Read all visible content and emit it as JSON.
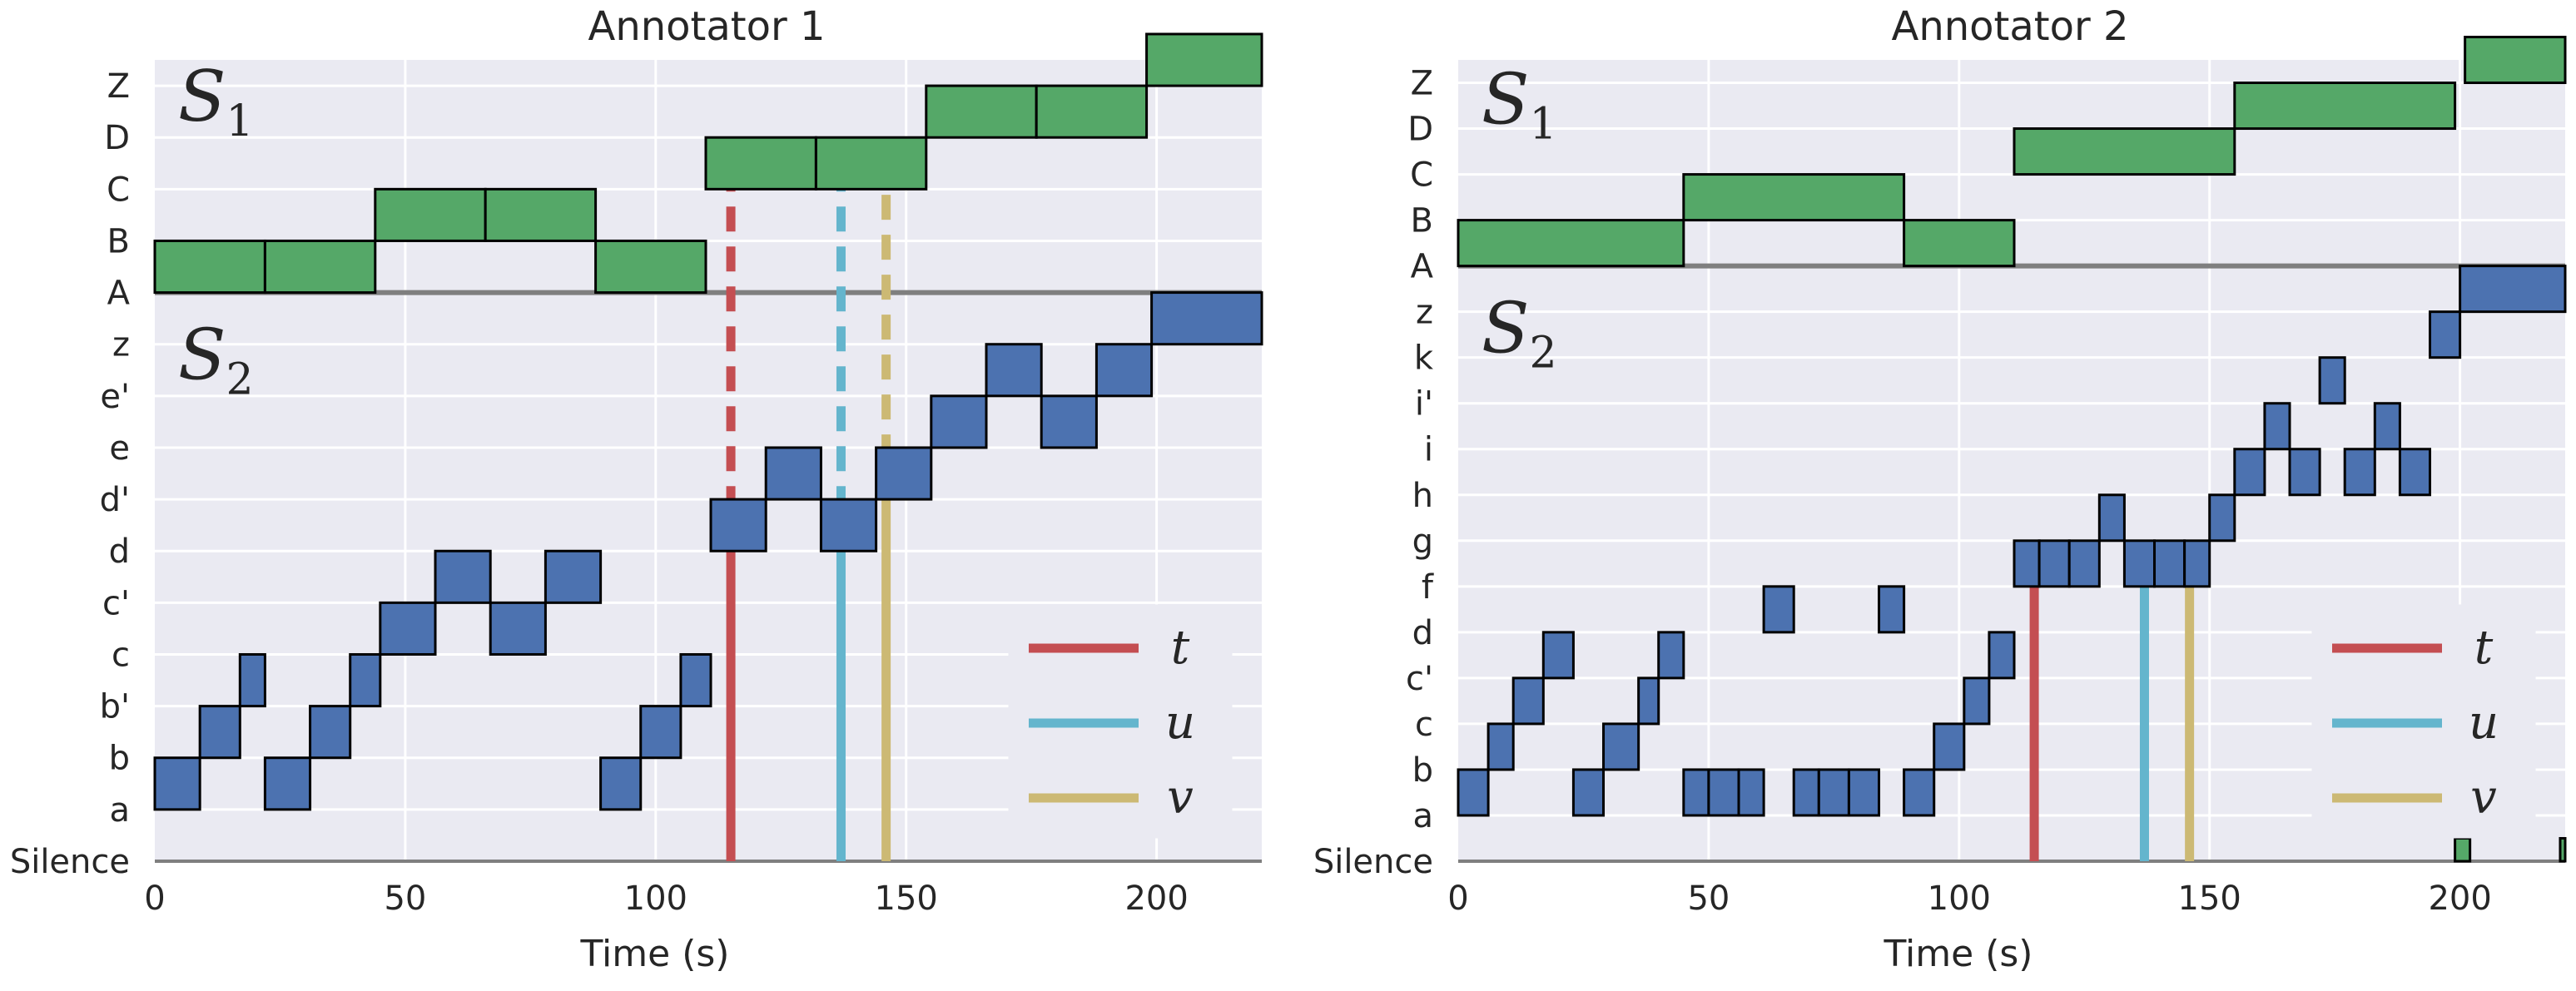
{
  "chart_data": [
    {
      "type": "step-timeline",
      "title": "Annotator 1",
      "xlabel": "Time (s)",
      "xlim": [
        0,
        221
      ],
      "xticks": [
        0,
        50,
        100,
        150,
        200
      ],
      "colors": {
        "segment_upper": "#55a868",
        "segment_lower": "#4c72b0",
        "t": "#c44e52",
        "u": "#64b5cd",
        "v": "#ccb974"
      },
      "y_levels": [
        "Silence",
        "a",
        "b",
        "b'",
        "c",
        "c'",
        "d",
        "d'",
        "e",
        "e'",
        "z",
        "A",
        "B",
        "C",
        "D",
        "Z"
      ],
      "sections": [
        {
          "name": "S",
          "sub": "1",
          "levels": [
            "A",
            "B",
            "C",
            "D",
            "Z"
          ]
        },
        {
          "name": "S",
          "sub": "2",
          "levels": [
            "a",
            "b",
            "b'",
            "c",
            "c'",
            "d",
            "d'",
            "e",
            "e'",
            "z"
          ]
        }
      ],
      "upper_segments": [
        {
          "start": 0,
          "end": 22,
          "label": "A"
        },
        {
          "start": 22,
          "end": 44,
          "label": "A"
        },
        {
          "start": 44,
          "end": 66,
          "label": "B"
        },
        {
          "start": 66,
          "end": 88,
          "label": "B"
        },
        {
          "start": 88,
          "end": 110,
          "label": "A"
        },
        {
          "start": 110,
          "end": 132,
          "label": "C"
        },
        {
          "start": 132,
          "end": 154,
          "label": "C"
        },
        {
          "start": 154,
          "end": 176,
          "label": "D"
        },
        {
          "start": 176,
          "end": 198,
          "label": "D"
        },
        {
          "start": 198,
          "end": 221,
          "label": "Z"
        }
      ],
      "lower_segments": [
        {
          "start": 0,
          "end": 9,
          "label": "a"
        },
        {
          "start": 9,
          "end": 17,
          "label": "b"
        },
        {
          "start": 17,
          "end": 22,
          "label": "b'"
        },
        {
          "start": 22,
          "end": 31,
          "label": "a"
        },
        {
          "start": 31,
          "end": 39,
          "label": "b"
        },
        {
          "start": 39,
          "end": 45,
          "label": "b'"
        },
        {
          "start": 45,
          "end": 56,
          "label": "c"
        },
        {
          "start": 56,
          "end": 67,
          "label": "c'"
        },
        {
          "start": 67,
          "end": 78,
          "label": "c"
        },
        {
          "start": 78,
          "end": 89,
          "label": "c'"
        },
        {
          "start": 89,
          "end": 97,
          "label": "a"
        },
        {
          "start": 97,
          "end": 105,
          "label": "b"
        },
        {
          "start": 105,
          "end": 111,
          "label": "b'"
        },
        {
          "start": 111,
          "end": 122,
          "label": "d"
        },
        {
          "start": 122,
          "end": 133,
          "label": "d'"
        },
        {
          "start": 133,
          "end": 144,
          "label": "d"
        },
        {
          "start": 144,
          "end": 155,
          "label": "d'"
        },
        {
          "start": 155,
          "end": 166,
          "label": "e"
        },
        {
          "start": 166,
          "end": 177,
          "label": "e'"
        },
        {
          "start": 177,
          "end": 188,
          "label": "e"
        },
        {
          "start": 188,
          "end": 199,
          "label": "e'"
        },
        {
          "start": 199,
          "end": 221,
          "label": "z"
        }
      ],
      "markers": [
        {
          "name": "t",
          "x": 115,
          "solid_top": "d"
        },
        {
          "name": "u",
          "x": 137,
          "solid_top": "d"
        },
        {
          "name": "v",
          "x": 146,
          "solid_top": "d'"
        }
      ],
      "marker_dash_top": "C",
      "legend": [
        "t",
        "u",
        "v"
      ],
      "legend_position": "lower-right"
    },
    {
      "type": "step-timeline",
      "title": "Annotator 2",
      "xlabel": "Time (s)",
      "xlim": [
        0,
        221
      ],
      "xticks": [
        0,
        50,
        100,
        150,
        200
      ],
      "colors": {
        "segment_upper": "#55a868",
        "segment_lower": "#4c72b0",
        "t": "#c44e52",
        "u": "#64b5cd",
        "v": "#ccb974"
      },
      "y_levels": [
        "Silence",
        "a",
        "b",
        "c",
        "c'",
        "d",
        "f",
        "g",
        "h",
        "i",
        "i'",
        "k",
        "z",
        "A",
        "B",
        "C",
        "D",
        "Z"
      ],
      "sections": [
        {
          "name": "S",
          "sub": "1",
          "levels": [
            "A",
            "B",
            "C",
            "D",
            "Z"
          ]
        },
        {
          "name": "S",
          "sub": "2",
          "levels": [
            "a",
            "b",
            "c",
            "c'",
            "d",
            "f",
            "g",
            "h",
            "i",
            "i'",
            "k",
            "z"
          ]
        }
      ],
      "upper_segments": [
        {
          "start": 0,
          "end": 45,
          "label": "A"
        },
        {
          "start": 45,
          "end": 89,
          "label": "B"
        },
        {
          "start": 89,
          "end": 111,
          "label": "A"
        },
        {
          "start": 111,
          "end": 155,
          "label": "C"
        },
        {
          "start": 155,
          "end": 199,
          "label": "D"
        },
        {
          "start": 201,
          "end": 221,
          "label": "Z"
        }
      ],
      "lower_segments": [
        {
          "start": 0,
          "end": 6,
          "label": "a"
        },
        {
          "start": 6,
          "end": 11,
          "label": "b"
        },
        {
          "start": 11,
          "end": 17,
          "label": "c"
        },
        {
          "start": 17,
          "end": 23,
          "label": "c'"
        },
        {
          "start": 23,
          "end": 29,
          "label": "a"
        },
        {
          "start": 29,
          "end": 36,
          "label": "b"
        },
        {
          "start": 36,
          "end": 40,
          "label": "c"
        },
        {
          "start": 40,
          "end": 45,
          "label": "c'"
        },
        {
          "start": 45,
          "end": 50,
          "label": "a"
        },
        {
          "start": 50,
          "end": 56,
          "label": "a"
        },
        {
          "start": 56,
          "end": 61,
          "label": "a"
        },
        {
          "start": 61,
          "end": 67,
          "label": "d"
        },
        {
          "start": 67,
          "end": 72,
          "label": "a"
        },
        {
          "start": 72,
          "end": 78,
          "label": "a"
        },
        {
          "start": 78,
          "end": 84,
          "label": "a"
        },
        {
          "start": 84,
          "end": 89,
          "label": "d"
        },
        {
          "start": 89,
          "end": 95,
          "label": "a"
        },
        {
          "start": 95,
          "end": 101,
          "label": "b"
        },
        {
          "start": 101,
          "end": 106,
          "label": "c"
        },
        {
          "start": 106,
          "end": 111,
          "label": "c'"
        },
        {
          "start": 111,
          "end": 116,
          "label": "f"
        },
        {
          "start": 116,
          "end": 122,
          "label": "f"
        },
        {
          "start": 122,
          "end": 128,
          "label": "f"
        },
        {
          "start": 128,
          "end": 133,
          "label": "g"
        },
        {
          "start": 133,
          "end": 139,
          "label": "f"
        },
        {
          "start": 139,
          "end": 145,
          "label": "f"
        },
        {
          "start": 145,
          "end": 150,
          "label": "f"
        },
        {
          "start": 150,
          "end": 155,
          "label": "g"
        },
        {
          "start": 155,
          "end": 161,
          "label": "h"
        },
        {
          "start": 161,
          "end": 166,
          "label": "i"
        },
        {
          "start": 166,
          "end": 172,
          "label": "h"
        },
        {
          "start": 172,
          "end": 177,
          "label": "i'"
        },
        {
          "start": 177,
          "end": 183,
          "label": "h"
        },
        {
          "start": 183,
          "end": 188,
          "label": "i"
        },
        {
          "start": 188,
          "end": 194,
          "label": "h"
        },
        {
          "start": 194,
          "end": 200,
          "label": "k"
        },
        {
          "start": 200,
          "end": 221,
          "label": "z"
        }
      ],
      "silence_ticks": [
        {
          "start": 199,
          "end": 202
        },
        {
          "start": 220,
          "end": 221
        }
      ],
      "markers": [
        {
          "name": "t",
          "x": 115,
          "solid_top": "f"
        },
        {
          "name": "u",
          "x": 137,
          "solid_top": "f"
        },
        {
          "name": "v",
          "x": 146,
          "solid_top": "f"
        }
      ],
      "legend": [
        "t",
        "u",
        "v"
      ],
      "legend_position": "lower-right"
    }
  ]
}
